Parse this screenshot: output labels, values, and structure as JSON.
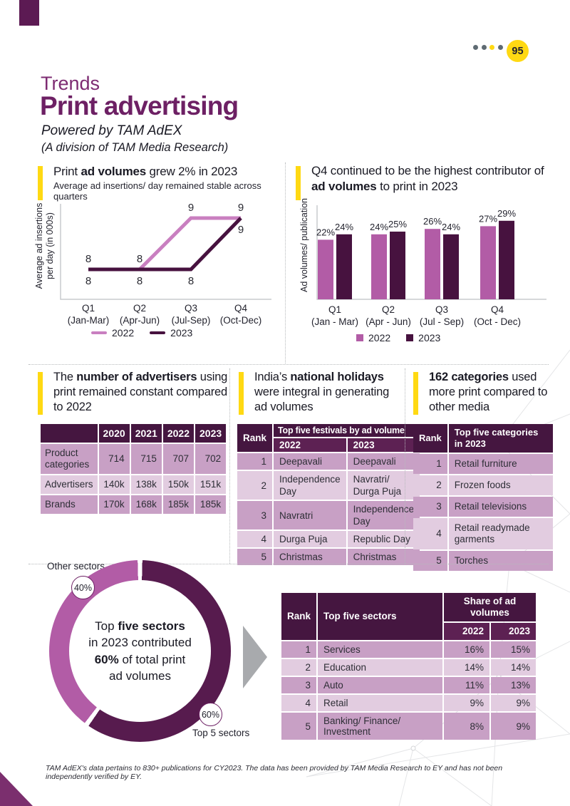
{
  "page": {
    "page_number": "95",
    "dot_colors": [
      "#5f6b73",
      "#5f6b73",
      "#ffd913",
      "#5f6b73"
    ],
    "eyebrow": "Trends",
    "title": "Print advertising",
    "powered_by": "Powered by TAM AdEX",
    "division": "(A division of TAM Media Research)",
    "footer": "TAM AdEX's data pertains to 830+ publications for CY2023. The data has been provided by TAM Media Research to EY and has not been independently verified by EY."
  },
  "colors": {
    "accent_yellow": "#ffd913",
    "header_purple": "#451640",
    "subheader_purple": "#5d2153",
    "row_dark": "#c8a0c5",
    "row_light": "#e2cce0",
    "series_2022_line": "#c97fc0",
    "series_2022_bar": "#b25ca6",
    "series_2023": "#47123f",
    "donut_dark": "#571b4e",
    "donut_light": "#b25ca6",
    "title_purple": "#6d2064",
    "arrow_gray": "#a8aaad",
    "axis_gray": "#c9cbcd"
  },
  "chart_data": [
    {
      "id": "avg-insertions-line",
      "type": "line",
      "title": {
        "pre": "Print ",
        "bold": "ad volumes",
        "post": " grew 2% in 2023"
      },
      "subtitle": "Average ad insertions/ day remained stable across quarters",
      "ylabel": "Average ad insertions\nper day (in 000s)",
      "categories": [
        {
          "q": "Q1",
          "range": "(Jan-Mar)"
        },
        {
          "q": "Q2",
          "range": "(Apr-Jun)"
        },
        {
          "q": "Q3",
          "range": "(Jul-Sep)"
        },
        {
          "q": "Q4",
          "range": "(Oct-Dec)"
        }
      ],
      "series": [
        {
          "name": "2022",
          "values": [
            8,
            8,
            9,
            9
          ]
        },
        {
          "name": "2023",
          "values": [
            8,
            8,
            8,
            9
          ]
        }
      ],
      "ylim": [
        7,
        10
      ],
      "legend_position": "bottom"
    },
    {
      "id": "ad-volumes-bar",
      "type": "bar",
      "title": {
        "pre": "Q4 continued to be the highest contributor of ",
        "bold": "ad volumes",
        "post": " to print in 2023"
      },
      "ylabel": "Ad volumes/ publication",
      "unit": "%",
      "categories": [
        {
          "q": "Q1",
          "range": "(Jan - Mar)"
        },
        {
          "q": "Q2",
          "range": "(Apr - Jun)"
        },
        {
          "q": "Q3",
          "range": "(Jul - Sep)"
        },
        {
          "q": "Q4",
          "range": "(Oct - Dec)"
        }
      ],
      "series": [
        {
          "name": "2022",
          "values": [
            22,
            24,
            26,
            27
          ]
        },
        {
          "name": "2023",
          "values": [
            24,
            25,
            24,
            29
          ]
        }
      ],
      "ylim": [
        0,
        30
      ],
      "legend_position": "bottom"
    },
    {
      "id": "sector-donut",
      "type": "pie",
      "slices": [
        {
          "label": "Top 5 sectors",
          "value": 60,
          "badge": "60%"
        },
        {
          "label": "Other sectors",
          "value": 40,
          "badge": "40%"
        }
      ],
      "center_lines": [
        {
          "pre": "Top ",
          "bold": "five sectors",
          "post": ""
        },
        {
          "pre": "in 2023 contributed"
        },
        {
          "pre": "",
          "bold": "60%",
          "post": " of total print"
        },
        {
          "pre": "ad volumes"
        }
      ]
    }
  ],
  "panels": {
    "advertisers": {
      "heading": {
        "pre": "The ",
        "bold": "number of advertisers",
        "post": " using print remained constant compared to 2022"
      },
      "col_headers": [
        "",
        "2020",
        "2021",
        "2022",
        "2023"
      ],
      "rows": [
        {
          "label": "Product categories",
          "values": [
            "714",
            "715",
            "707",
            "702"
          ]
        },
        {
          "label": "Advertisers",
          "values": [
            "140k",
            "138k",
            "150k",
            "151k"
          ]
        },
        {
          "label": "Brands",
          "values": [
            "170k",
            "168k",
            "185k",
            "185k"
          ]
        }
      ]
    },
    "festivals": {
      "heading": {
        "pre": "India’s ",
        "bold": "national holidays",
        "post": " were integral in generating ad volumes"
      },
      "rank_header": "Rank",
      "group_header": "Top five festivals by ad volume",
      "sub_headers": [
        "2022",
        "2023"
      ],
      "rows": [
        {
          "rank": "1",
          "y2022": "Deepavali",
          "y2023": "Deepavali"
        },
        {
          "rank": "2",
          "y2022": "Independence Day",
          "y2023": "Navratri/ Durga Puja"
        },
        {
          "rank": "3",
          "y2022": "Navratri",
          "y2023": "Independence Day"
        },
        {
          "rank": "4",
          "y2022": "Durga Puja",
          "y2023": "Republic Day"
        },
        {
          "rank": "5",
          "y2022": "Christmas",
          "y2023": "Christmas"
        }
      ]
    },
    "categories": {
      "heading": {
        "pre": "",
        "bold": "162 categories",
        "post": " used more print compared to other media"
      },
      "rank_header": "Rank",
      "col_header": "Top five categories in 2023",
      "rows": [
        {
          "rank": "1",
          "label": "Retail furniture"
        },
        {
          "rank": "2",
          "label": "Frozen foods"
        },
        {
          "rank": "3",
          "label": "Retail televisions"
        },
        {
          "rank": "4",
          "label": "Retail readymade garments"
        },
        {
          "rank": "5",
          "label": "Torches"
        }
      ]
    },
    "sectors": {
      "rank_header": "Rank",
      "sector_header": "Top five sectors",
      "group_header": "Share of ad volumes",
      "sub_headers": [
        "2022",
        "2023"
      ],
      "rows": [
        {
          "rank": "1",
          "sector": "Services",
          "v2022": "16%",
          "v2023": "15%"
        },
        {
          "rank": "2",
          "sector": "Education",
          "v2022": "14%",
          "v2023": "14%"
        },
        {
          "rank": "3",
          "sector": "Auto",
          "v2022": "11%",
          "v2023": "13%"
        },
        {
          "rank": "4",
          "sector": "Retail",
          "v2022": "9%",
          "v2023": "9%"
        },
        {
          "rank": "5",
          "sector": "Banking/ Finance/ Investment",
          "v2022": "8%",
          "v2023": "9%"
        }
      ]
    }
  },
  "donut_labels": {
    "other": "Other sectors",
    "top": "Top 5 sectors"
  }
}
